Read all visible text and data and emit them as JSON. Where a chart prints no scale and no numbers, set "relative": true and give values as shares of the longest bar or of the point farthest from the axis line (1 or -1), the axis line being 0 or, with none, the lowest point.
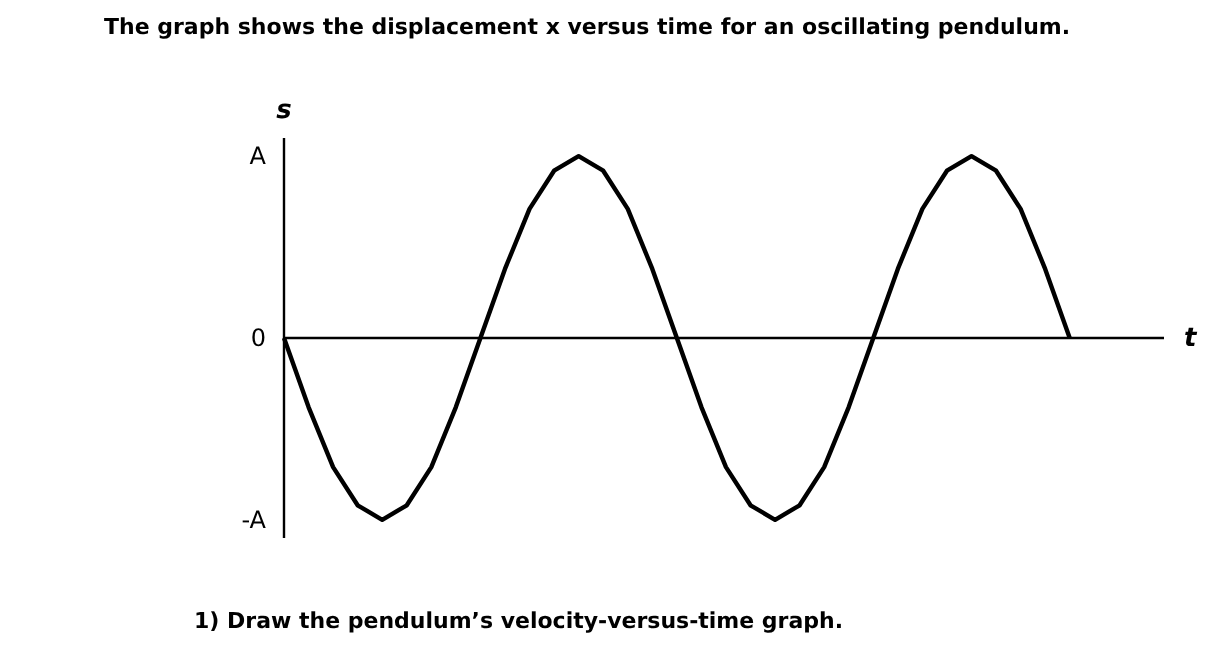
{
  "chart_data": {
    "type": "line",
    "title": "The graph shows the displacement x versus time for an oscillating pendulum.",
    "ylabel": "s",
    "xlabel": "t",
    "annotations": [
      "A",
      "0",
      "-A",
      "1) Draw the pendulum’s velocity-versus-time graph."
    ],
    "categories": [
      null,
      null,
      null,
      null,
      null,
      null,
      null,
      null,
      null,
      null,
      null,
      null,
      null,
      null,
      null,
      null,
      null,
      null,
      null,
      null,
      null,
      null,
      null,
      null,
      null,
      null,
      null,
      null,
      null,
      null,
      null,
      null,
      null
    ],
    "series": [
      {
        "color": "#000000",
        "values": [
          0,
          -0.38,
          -0.71,
          -0.92,
          -1,
          -0.92,
          -0.71,
          -0.38,
          0,
          0.38,
          0.71,
          0.92,
          1,
          0.92,
          0.71,
          0.38,
          0,
          -0.38,
          -0.71,
          -0.92,
          -1,
          -0.92,
          -0.71,
          -0.38,
          0,
          0.38,
          0.71,
          0.92,
          1,
          0.92,
          0.71,
          0.38,
          0
        ]
      }
    ],
    "relative": true
  }
}
